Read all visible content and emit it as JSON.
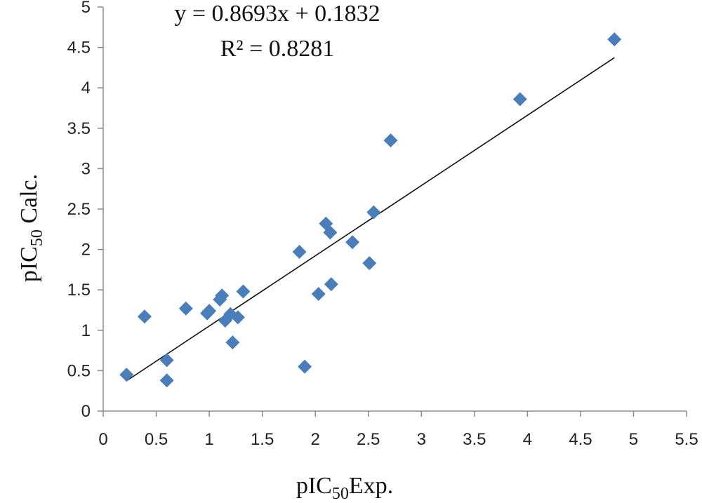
{
  "chart_data": {
    "type": "scatter",
    "xlabel": {
      "prefix": "pIC",
      "sub": "50",
      "suffix": "Exp."
    },
    "ylabel": {
      "prefix": "pIC",
      "sub": "50",
      "suffix": " Calc."
    },
    "xlim": [
      0,
      5.5
    ],
    "ylim": [
      0,
      5
    ],
    "x_ticks": [
      "0",
      "0.5",
      "1",
      "1.5",
      "2",
      "2.5",
      "3",
      "3.5",
      "4",
      "4.5",
      "5",
      "5.5"
    ],
    "y_ticks": [
      "0",
      "0.5",
      "1",
      "1.5",
      "2",
      "2.5",
      "3",
      "3.5",
      "4",
      "4.5",
      "5"
    ],
    "grid": false,
    "marker_color": "#4a7ebb",
    "trendline": {
      "equation_text": "y = 0.8693x + 0.1832",
      "r2_text": "R² = 0.8281",
      "slope": 0.8693,
      "intercept": 0.1832,
      "x_range": [
        0.22,
        4.82
      ]
    },
    "points": [
      [
        0.22,
        0.45
      ],
      [
        0.39,
        1.17
      ],
      [
        0.6,
        0.38
      ],
      [
        0.6,
        0.63
      ],
      [
        0.78,
        1.27
      ],
      [
        0.98,
        1.21
      ],
      [
        1.0,
        1.24
      ],
      [
        1.1,
        1.38
      ],
      [
        1.12,
        1.43
      ],
      [
        1.15,
        1.12
      ],
      [
        1.2,
        1.2
      ],
      [
        1.22,
        0.85
      ],
      [
        1.27,
        1.16
      ],
      [
        1.32,
        1.48
      ],
      [
        1.85,
        1.97
      ],
      [
        1.9,
        0.55
      ],
      [
        2.03,
        1.45
      ],
      [
        2.1,
        2.32
      ],
      [
        2.14,
        2.21
      ],
      [
        2.15,
        1.57
      ],
      [
        2.35,
        2.09
      ],
      [
        2.51,
        1.83
      ],
      [
        2.55,
        2.46
      ],
      [
        2.71,
        3.35
      ],
      [
        3.93,
        3.86
      ],
      [
        4.82,
        4.6
      ]
    ]
  }
}
